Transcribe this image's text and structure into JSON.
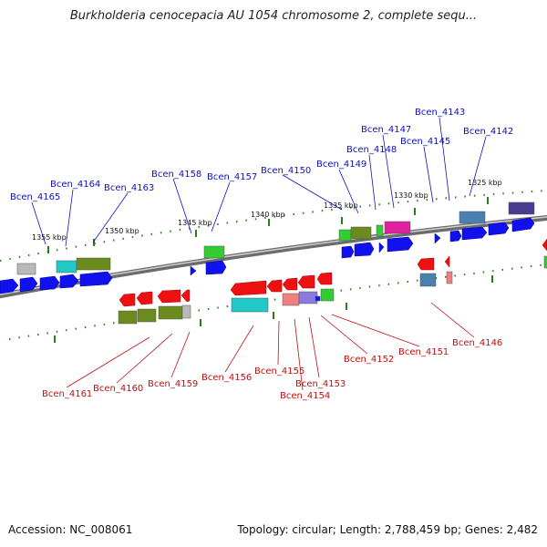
{
  "title": "Burkholderia cenocepacia AU 1054 chromosome 2, complete sequ...",
  "footer": {
    "accession": "Accession: NC_008061",
    "summary": "Topology: circular; Length: 2,788,459 bp; Genes: 2,482"
  },
  "ticks": [
    "1355 kbp",
    "1350 kbp",
    "1345 kbp",
    "1340 kbp",
    "1335 kbp",
    "1330 kbp",
    "1325 kbp"
  ],
  "forward_labels": [
    "Bcen_4165",
    "Bcen_4164",
    "Bcen_4163",
    "Bcen_4158",
    "Bcen_4157",
    "Bcen_4150",
    "Bcen_4149",
    "Bcen_4148",
    "Bcen_4147",
    "Bcen_4145",
    "Bcen_4143",
    "Bcen_4142"
  ],
  "reverse_labels": [
    "Bcen_4161",
    "Bcen_4160",
    "Bcen_4159",
    "Bcen_4156",
    "Bcen_4155",
    "Bcen_4154",
    "Bcen_4153",
    "Bcen_4152",
    "Bcen_4151",
    "Bcen_4146"
  ],
  "colors": {
    "forward_label": "#1010c0",
    "reverse_label": "#c01010",
    "cds_forward": "#1111ee",
    "cds_reverse": "#ee1111",
    "backbone": "#888888",
    "tick": "#2e7d1a"
  }
}
